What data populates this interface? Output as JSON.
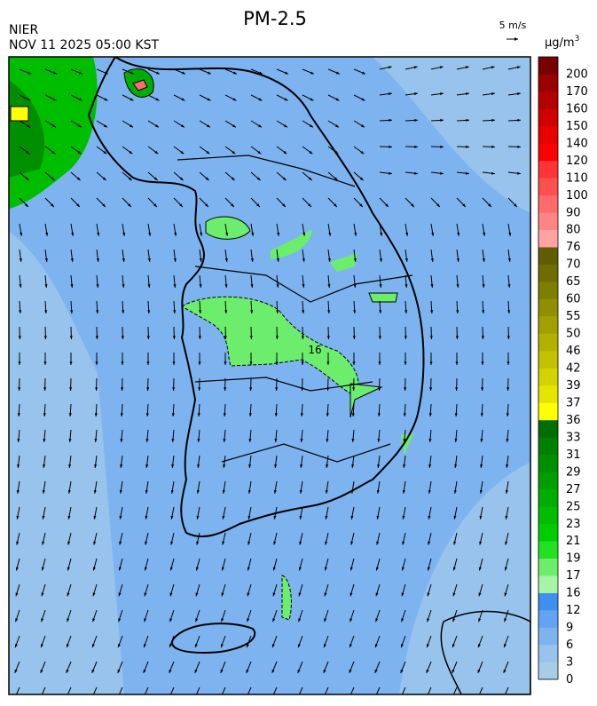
{
  "header": {
    "source": "NIER",
    "datetime": "NOV 11 2025 05:00 KST",
    "title": "PM-2.5",
    "wind_scale": "5 m/s",
    "unit": "µg/m",
    "unit_exponent": "3"
  },
  "colorbar": {
    "labels": [
      "0",
      "3",
      "6",
      "9",
      "12",
      "16",
      "17",
      "19",
      "21",
      "23",
      "25",
      "27",
      "29",
      "31",
      "33",
      "36",
      "37",
      "39",
      "42",
      "46",
      "50",
      "55",
      "60",
      "65",
      "70",
      "76",
      "80",
      "90",
      "100",
      "110",
      "120",
      "140",
      "150",
      "160",
      "170",
      "200"
    ],
    "colors": [
      "#a7cde6",
      "#97c3ec",
      "#7db4f0",
      "#62a4f2",
      "#3e8ff0",
      "#a6f5a6",
      "#6cee6c",
      "#22e022",
      "#00cc00",
      "#00bd00",
      "#00ad00",
      "#009e00",
      "#008f00",
      "#008000",
      "#006e00",
      "#ffff00",
      "#e5e500",
      "#d3d300",
      "#c2c200",
      "#b1b100",
      "#a0a000",
      "#8f8f00",
      "#7e7e00",
      "#6e6e00",
      "#5e5e00",
      "#ffa3a3",
      "#ff8585",
      "#ff6a6a",
      "#ff5050",
      "#ff3535",
      "#ff0000",
      "#e80000",
      "#cf0000",
      "#b50000",
      "#9a0000",
      "#770000"
    ]
  },
  "map": {
    "contour_label": "16"
  }
}
